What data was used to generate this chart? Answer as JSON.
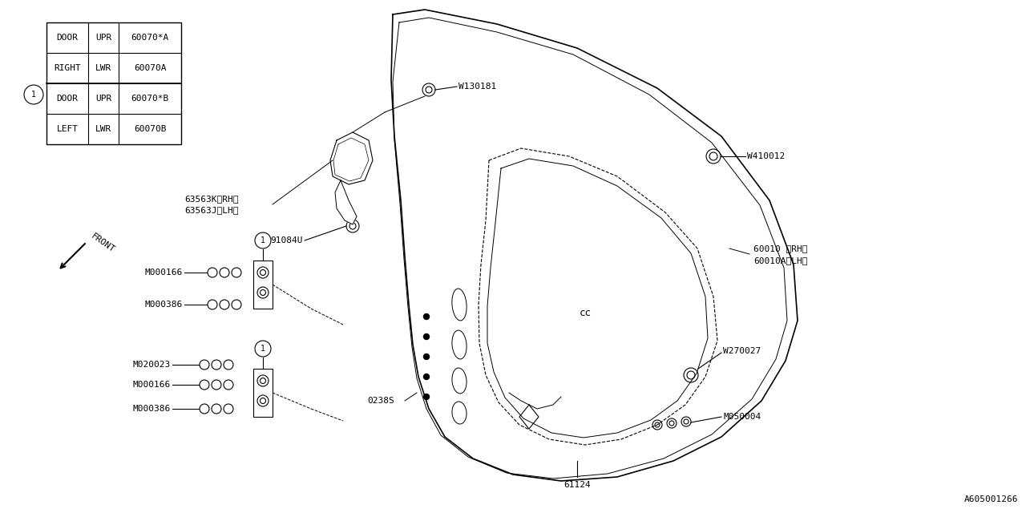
{
  "bg_color": "#ffffff",
  "line_color": "#000000",
  "diagram_id": "A605001266",
  "font_size": 8,
  "font_family": "monospace",
  "table": {
    "col1": [
      "DOOR",
      "RIGHT",
      "DOOR",
      "LEFT"
    ],
    "col2": [
      "UPR",
      "LWR",
      "UPR",
      "LWR"
    ],
    "col3": [
      "60070*A",
      "60070A",
      "60070*B",
      "60070B"
    ]
  }
}
